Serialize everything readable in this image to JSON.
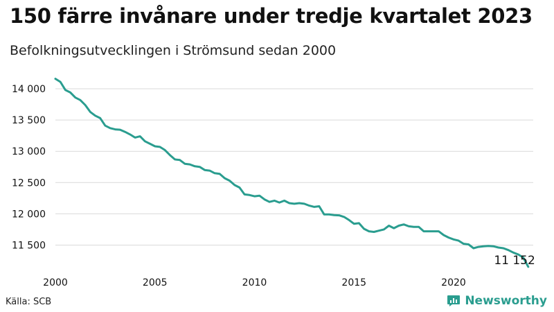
{
  "title": "150 färre invånare under tredje kvartalet 2023",
  "subtitle": "Befolkningsutvecklingen i Strömsund sedan 2000",
  "source": "Källa: SCB",
  "brand": {
    "name": "Newsworthy",
    "icon": "bar-chart-logo-icon",
    "color": "#2a9d8f"
  },
  "chart_data": {
    "type": "line",
    "title": "150 färre invånare under tredje kvartalet 2023",
    "xlabel": "",
    "ylabel": "",
    "xlim": [
      2000,
      2024
    ],
    "ylim": [
      11150,
      14200
    ],
    "x_ticks": [
      2000,
      2005,
      2010,
      2015,
      2020
    ],
    "y_ticks": [
      11500,
      12000,
      12500,
      13000,
      13500,
      14000
    ],
    "y_tick_labels": [
      "11 500",
      "12 000",
      "12 500",
      "13 000",
      "13 500",
      "14 000"
    ],
    "grid": "horizontal",
    "line_color": "#2a9d8f",
    "end_label": "11 152",
    "series": [
      {
        "x": [
          2000.0,
          2000.25,
          2000.5,
          2000.75,
          2001.0,
          2001.25,
          2001.5,
          2001.75,
          2002.0,
          2002.25,
          2002.5,
          2002.75,
          2003.0,
          2003.25,
          2003.5,
          2003.75,
          2004.0,
          2004.25,
          2004.5,
          2004.75,
          2005.0,
          2005.25,
          2005.5,
          2005.75,
          2006.0,
          2006.25,
          2006.5,
          2006.75,
          2007.0,
          2007.25,
          2007.5,
          2007.75,
          2008.0,
          2008.25,
          2008.5,
          2008.75,
          2009.0,
          2009.25,
          2009.5,
          2009.75,
          2010.0,
          2010.25,
          2010.5,
          2010.75,
          2011.0,
          2011.25,
          2011.5,
          2011.75,
          2012.0,
          2012.25,
          2012.5,
          2012.75,
          2013.0,
          2013.25,
          2013.5,
          2013.75,
          2014.0,
          2014.25,
          2014.5,
          2014.75,
          2015.0,
          2015.25,
          2015.5,
          2015.75,
          2016.0,
          2016.25,
          2016.5,
          2016.75,
          2017.0,
          2017.25,
          2017.5,
          2017.75,
          2018.0,
          2018.25,
          2018.5,
          2018.75,
          2019.0,
          2019.25,
          2019.5,
          2019.75,
          2020.0,
          2020.25,
          2020.5,
          2020.75,
          2021.0,
          2021.25,
          2021.5,
          2021.75,
          2022.0,
          2022.25,
          2022.5,
          2022.75,
          2023.0,
          2023.25,
          2023.5,
          2023.75
        ],
        "values": [
          14160,
          14110,
          13980,
          13940,
          13860,
          13820,
          13740,
          13630,
          13570,
          13530,
          13410,
          13370,
          13350,
          13345,
          13310,
          13270,
          13220,
          13240,
          13160,
          13120,
          13080,
          13070,
          13020,
          12940,
          12870,
          12860,
          12800,
          12790,
          12760,
          12750,
          12700,
          12690,
          12650,
          12640,
          12570,
          12530,
          12460,
          12420,
          12310,
          12300,
          12280,
          12290,
          12230,
          12190,
          12210,
          12180,
          12210,
          12170,
          12160,
          12170,
          12160,
          12130,
          12110,
          12120,
          11990,
          11990,
          11980,
          11975,
          11950,
          11900,
          11840,
          11850,
          11760,
          11720,
          11710,
          11730,
          11750,
          11810,
          11770,
          11810,
          11830,
          11800,
          11790,
          11790,
          11720,
          11720,
          11720,
          11720,
          11660,
          11620,
          11590,
          11570,
          11520,
          11510,
          11450,
          11470,
          11480,
          11485,
          11480,
          11460,
          11450,
          11420,
          11380,
          11350,
          11300,
          11152
        ]
      }
    ]
  }
}
